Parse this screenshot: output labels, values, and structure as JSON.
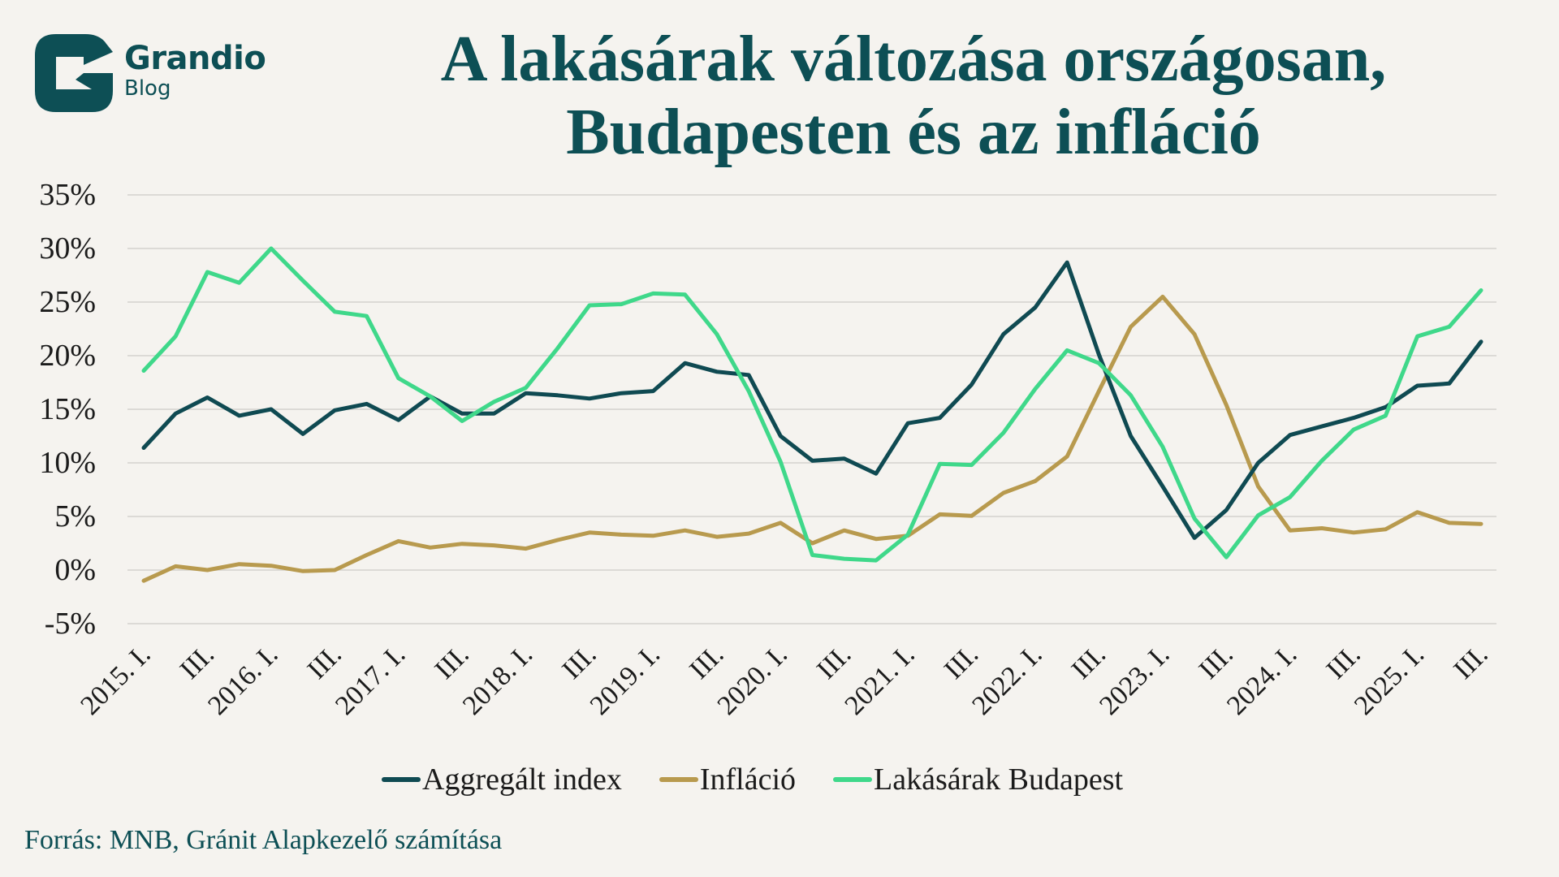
{
  "brand": {
    "name": "Grandio",
    "sub": "Blog",
    "color": "#0d4f55"
  },
  "title_line1": "A lakásárak változása országosan,",
  "title_line2": "Budapesten és az infláció",
  "source": "Forrás: MNB, Gránit Alapkezelő számítása",
  "chart_data": {
    "type": "line",
    "title": "A lakásárak változása országosan, Budapesten és az infláció",
    "xlabel": "",
    "ylabel": "",
    "ylim": [
      -5,
      35
    ],
    "yticks": [
      35,
      30,
      25,
      20,
      15,
      10,
      5,
      0,
      -5
    ],
    "ytick_labels": [
      "35%",
      "30%",
      "25%",
      "20%",
      "15%",
      "10%",
      "5%",
      "0%",
      "-5%"
    ],
    "grid": true,
    "legend_position": "bottom",
    "x": [
      "2015. I.",
      "2015. II.",
      "2015. III.",
      "2015. IV.",
      "2016. I.",
      "2016. II.",
      "2016. III.",
      "2016. IV.",
      "2017. I.",
      "2017. II.",
      "2017. III.",
      "2017. IV.",
      "2018. I.",
      "2018. II.",
      "2018. III.",
      "2018. IV.",
      "2019. I.",
      "2019. II.",
      "2019. III.",
      "2019. IV.",
      "2020. I.",
      "2020. II.",
      "2020. III.",
      "2020. IV.",
      "2021. I.",
      "2021. II.",
      "2021. III.",
      "2021. IV.",
      "2022. I.",
      "2022. II.",
      "2022. III.",
      "2022. IV.",
      "2023. I.",
      "2023. II.",
      "2023. III.",
      "2023. IV.",
      "2024. I.",
      "2024. II.",
      "2024. III.",
      "2024. IV.",
      "2025. I.",
      "2025. II.",
      "2025. III."
    ],
    "xtick_labels": [
      "2015. I.",
      "III.",
      "2016. I.",
      "III.",
      "2017. I.",
      "III.",
      "2018. I.",
      "III.",
      "2019. I.",
      "III.",
      "2020. I.",
      "III.",
      "2021. I.",
      "III.",
      "2022. I.",
      "III.",
      "2023. I.",
      "III.",
      "2024. I.",
      "III.",
      "2025. I.",
      "III."
    ],
    "series": [
      {
        "name": "Aggregált index",
        "color": "#0f4a52",
        "values": [
          11.4,
          14.6,
          16.1,
          14.4,
          15.0,
          12.7,
          14.9,
          15.5,
          14.0,
          16.2,
          14.6,
          14.6,
          16.5,
          16.3,
          16.0,
          16.5,
          16.7,
          19.3,
          18.5,
          18.2,
          12.5,
          10.2,
          10.4,
          9.0,
          13.7,
          14.2,
          17.3,
          22.0,
          24.5,
          28.7,
          20.1,
          12.5,
          7.8,
          3.0,
          5.6,
          10.0,
          12.6,
          13.4,
          14.2,
          15.2,
          17.2,
          17.4,
          21.3
        ]
      },
      {
        "name": "Infláció",
        "color": "#b89a4e",
        "values": [
          -1.0,
          0.35,
          0.0,
          0.55,
          0.4,
          -0.1,
          0.0,
          1.4,
          2.7,
          2.1,
          2.45,
          2.3,
          2.0,
          2.8,
          3.5,
          3.3,
          3.2,
          3.7,
          3.1,
          3.4,
          4.4,
          2.5,
          3.7,
          2.9,
          3.2,
          5.2,
          5.05,
          7.2,
          8.3,
          10.6,
          16.7,
          22.7,
          25.5,
          22.0,
          15.4,
          7.8,
          3.7,
          3.9,
          3.5,
          3.8,
          5.4,
          4.4,
          4.3
        ]
      },
      {
        "name": "Lakásárak Budapest",
        "color": "#3fd88a",
        "values": [
          18.6,
          21.8,
          27.8,
          26.8,
          30.0,
          27.0,
          24.1,
          23.7,
          17.9,
          16.2,
          13.9,
          15.7,
          17.0,
          20.7,
          24.7,
          24.8,
          25.8,
          25.7,
          22.0,
          16.7,
          10.1,
          1.4,
          1.05,
          0.9,
          3.3,
          9.9,
          9.8,
          12.8,
          16.9,
          20.5,
          19.3,
          16.3,
          11.5,
          4.8,
          1.2,
          5.1,
          6.8,
          10.2,
          13.1,
          14.4,
          21.8,
          22.7,
          26.1
        ]
      }
    ]
  }
}
